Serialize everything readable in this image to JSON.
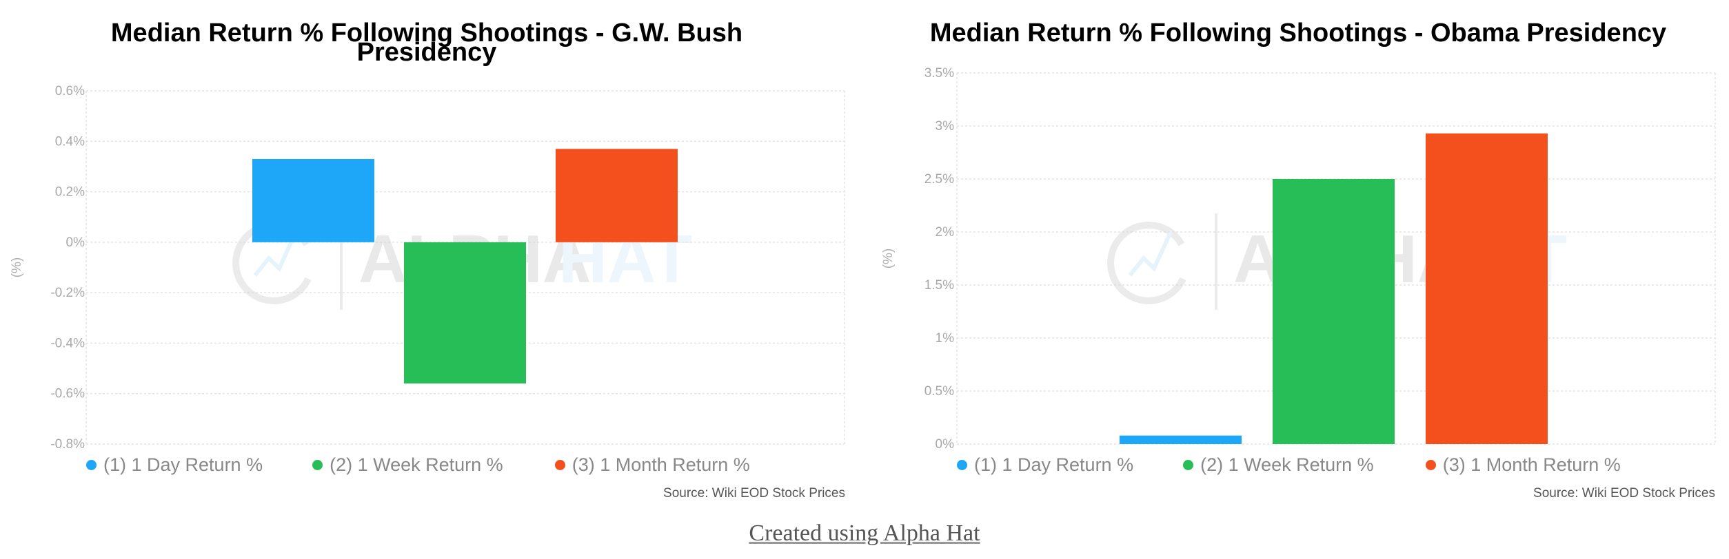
{
  "charts": [
    {
      "title_line1": "Median Return % Following Shootings - G.W. Bush",
      "title_line2": "Presidency",
      "source": "Source: Wiki EOD Stock Prices",
      "ylabel": "(%)",
      "tick_labels": [
        "0.6%",
        "0.4%",
        "0.2%",
        "0%",
        "-0.2%",
        "-0.4%",
        "-0.6%",
        "-0.8%"
      ],
      "legend": [
        "(1) 1 Day Return %",
        "(2) 1 Week Return %",
        "(3) 1 Month Return %"
      ]
    },
    {
      "title_line1": "Median Return % Following Shootings - Obama Presidency",
      "title_line2": "",
      "source": "Source: Wiki EOD Stock Prices",
      "ylabel": "(%)",
      "tick_labels": [
        "3.5%",
        "3%",
        "2.5%",
        "2%",
        "1.5%",
        "1%",
        "0.5%",
        "0%"
      ],
      "legend": [
        "(1) 1 Day Return %",
        "(2) 1 Week Return %",
        "(3) 1 Month Return %"
      ]
    }
  ],
  "chart_data": [
    {
      "type": "bar",
      "title": "Median Return % Following Shootings - G.W. Bush Presidency",
      "ylabel": "(%)",
      "ylim": [
        -0.8,
        0.6
      ],
      "grid": true,
      "legend_position": "bottom-left",
      "series": [
        {
          "name": "(1) 1 Day Return %",
          "value": 0.33,
          "color": "#1ea7f8"
        },
        {
          "name": "(2) 1 Week Return %",
          "value": -0.56,
          "color": "#27be58"
        },
        {
          "name": "(3) 1 Month Return %",
          "value": 0.37,
          "color": "#f4501d"
        }
      ]
    },
    {
      "type": "bar",
      "title": "Median Return % Following Shootings - Obama Presidency",
      "ylabel": "(%)",
      "ylim": [
        0,
        3.5
      ],
      "grid": true,
      "legend_position": "bottom-left",
      "series": [
        {
          "name": "(1) 1 Day Return %",
          "value": 0.08,
          "color": "#1ea7f8"
        },
        {
          "name": "(2) 1 Week Return %",
          "value": 2.5,
          "color": "#27be58"
        },
        {
          "name": "(3) 1 Month Return %",
          "value": 2.93,
          "color": "#f4501d"
        }
      ]
    }
  ],
  "watermark": {
    "brand_text_dark": "ALPHA",
    "brand_text_light": "HAT"
  },
  "footer": {
    "link_text": "Created using Alpha Hat"
  }
}
